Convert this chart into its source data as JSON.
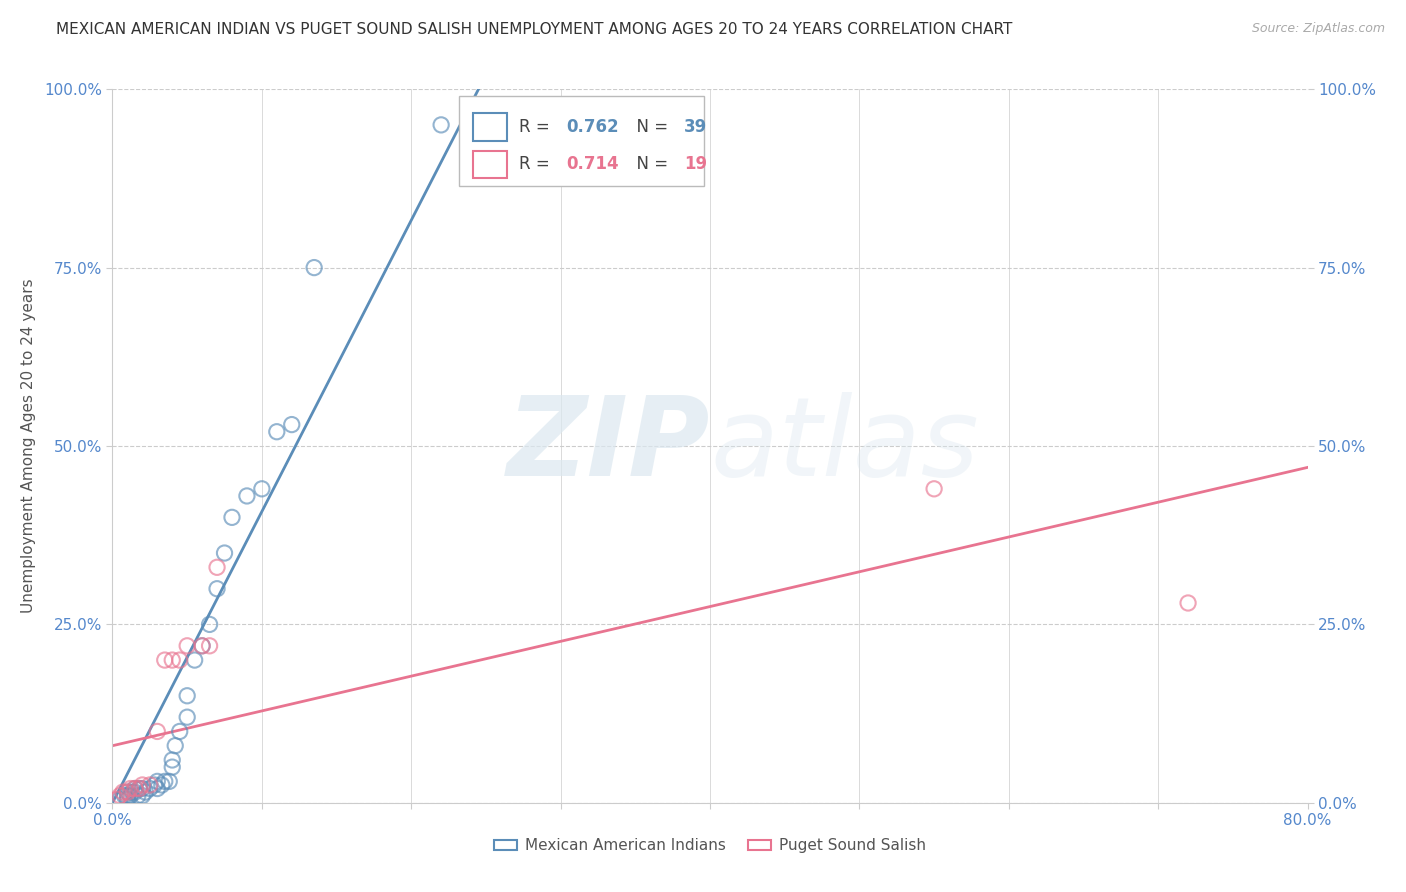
{
  "title": "MEXICAN AMERICAN INDIAN VS PUGET SOUND SALISH UNEMPLOYMENT AMONG AGES 20 TO 24 YEARS CORRELATION CHART",
  "source": "Source: ZipAtlas.com",
  "ylabel": "Unemployment Among Ages 20 to 24 years",
  "xlim": [
    0.0,
    0.8
  ],
  "ylim": [
    0.0,
    1.0
  ],
  "xtick_vals": [
    0.0,
    0.1,
    0.2,
    0.3,
    0.4,
    0.5,
    0.6,
    0.7,
    0.8
  ],
  "xtick_labels": [
    "0.0%",
    "",
    "",
    "",
    "",
    "",
    "",
    "",
    "80.0%"
  ],
  "ytick_vals": [
    0.0,
    0.25,
    0.5,
    0.75,
    1.0
  ],
  "ytick_labels": [
    "0.0%",
    "25.0%",
    "50.0%",
    "75.0%",
    "100.0%"
  ],
  "watermark_zip": "ZIP",
  "watermark_atlas": "atlas",
  "blue_color": "#5B8DB8",
  "pink_color": "#E87490",
  "legend_r_blue": "0.762",
  "legend_n_blue": "39",
  "legend_r_pink": "0.714",
  "legend_n_pink": "19",
  "blue_scatter_x": [
    0.005,
    0.008,
    0.01,
    0.01,
    0.01,
    0.012,
    0.013,
    0.015,
    0.015,
    0.017,
    0.018,
    0.02,
    0.02,
    0.022,
    0.025,
    0.028,
    0.03,
    0.03,
    0.033,
    0.035,
    0.038,
    0.04,
    0.04,
    0.042,
    0.045,
    0.05,
    0.05,
    0.055,
    0.06,
    0.065,
    0.07,
    0.075,
    0.08,
    0.09,
    0.1,
    0.11,
    0.12,
    0.135,
    0.22
  ],
  "blue_scatter_y": [
    0.005,
    0.01,
    0.005,
    0.01,
    0.015,
    0.01,
    0.015,
    0.015,
    0.02,
    0.01,
    0.02,
    0.01,
    0.02,
    0.015,
    0.02,
    0.025,
    0.02,
    0.03,
    0.025,
    0.03,
    0.03,
    0.05,
    0.06,
    0.08,
    0.1,
    0.12,
    0.15,
    0.2,
    0.22,
    0.25,
    0.3,
    0.35,
    0.4,
    0.43,
    0.44,
    0.52,
    0.53,
    0.75,
    0.95
  ],
  "pink_scatter_x": [
    0.003,
    0.005,
    0.007,
    0.01,
    0.012,
    0.015,
    0.018,
    0.02,
    0.025,
    0.03,
    0.035,
    0.04,
    0.045,
    0.05,
    0.06,
    0.065,
    0.07,
    0.55,
    0.72
  ],
  "pink_scatter_y": [
    0.005,
    0.01,
    0.015,
    0.015,
    0.02,
    0.02,
    0.02,
    0.025,
    0.025,
    0.1,
    0.2,
    0.2,
    0.2,
    0.22,
    0.22,
    0.22,
    0.33,
    0.44,
    0.28
  ],
  "blue_line_x": [
    0.0,
    0.245
  ],
  "blue_line_y": [
    0.0,
    1.0
  ],
  "pink_line_x": [
    0.0,
    0.8
  ],
  "pink_line_y": [
    0.08,
    0.47
  ],
  "background_color": "#ffffff",
  "grid_color": "#cccccc",
  "title_fontsize": 11,
  "label_fontsize": 11,
  "tick_fontsize": 11,
  "scatter_size": 120
}
